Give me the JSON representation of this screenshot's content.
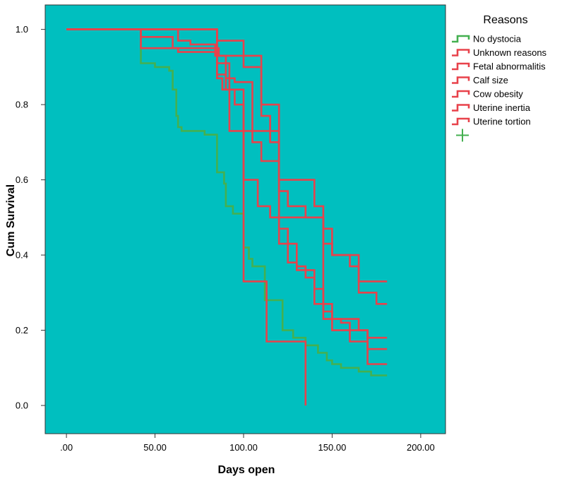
{
  "chart_data": {
    "type": "line",
    "subtype": "kaplan-meier step survival curves",
    "xlabel": "Days open",
    "ylabel": "Cum Survival",
    "xlim": [
      -12,
      214
    ],
    "ylim": [
      -0.075,
      1.065
    ],
    "x_ticks": [
      0,
      50,
      100,
      150,
      200
    ],
    "x_tick_labels": [
      ".00",
      "50.00",
      "100.00",
      "150.00",
      "200.00"
    ],
    "y_ticks": [
      0,
      0.2,
      0.4,
      0.6,
      0.8,
      1.0
    ],
    "y_tick_labels": [
      "0.0",
      "0.2",
      "0.4",
      "0.6",
      "0.8",
      "1.0"
    ],
    "plot_background": "#00bfbf",
    "legend": {
      "title": "Reasons",
      "position": "right",
      "censor_marker_color": "#44b050"
    },
    "series": [
      {
        "name": "No dystocia",
        "color": "#44b050",
        "points": [
          [
            0,
            1.0
          ],
          [
            42,
            1.0
          ],
          [
            42,
            0.91
          ],
          [
            50,
            0.91
          ],
          [
            50,
            0.9
          ],
          [
            58,
            0.9
          ],
          [
            58,
            0.89
          ],
          [
            60,
            0.89
          ],
          [
            60,
            0.84
          ],
          [
            62,
            0.84
          ],
          [
            62,
            0.77
          ],
          [
            63,
            0.77
          ],
          [
            63,
            0.74
          ],
          [
            65,
            0.74
          ],
          [
            65,
            0.73
          ],
          [
            78,
            0.73
          ],
          [
            78,
            0.72
          ],
          [
            85,
            0.72
          ],
          [
            85,
            0.62
          ],
          [
            89,
            0.62
          ],
          [
            89,
            0.59
          ],
          [
            90,
            0.59
          ],
          [
            90,
            0.53
          ],
          [
            94,
            0.53
          ],
          [
            94,
            0.51
          ],
          [
            100,
            0.51
          ],
          [
            100,
            0.42
          ],
          [
            103,
            0.42
          ],
          [
            103,
            0.39
          ],
          [
            105,
            0.39
          ],
          [
            105,
            0.37
          ],
          [
            112,
            0.37
          ],
          [
            112,
            0.28
          ],
          [
            122,
            0.28
          ],
          [
            122,
            0.2
          ],
          [
            128,
            0.2
          ],
          [
            128,
            0.18
          ],
          [
            135,
            0.18
          ],
          [
            135,
            0.16
          ],
          [
            142,
            0.16
          ],
          [
            142,
            0.14
          ],
          [
            147,
            0.14
          ],
          [
            147,
            0.12
          ],
          [
            150,
            0.12
          ],
          [
            150,
            0.11
          ],
          [
            155,
            0.11
          ],
          [
            155,
            0.1
          ],
          [
            165,
            0.1
          ],
          [
            165,
            0.09
          ],
          [
            172,
            0.09
          ],
          [
            172,
            0.08
          ],
          [
            181,
            0.08
          ]
        ]
      },
      {
        "name": "Unknown reasons",
        "color": "#e8424b",
        "points": [
          [
            0,
            1.0
          ],
          [
            85,
            1.0
          ],
          [
            85,
            0.87
          ],
          [
            88,
            0.87
          ],
          [
            88,
            0.84
          ],
          [
            100,
            0.84
          ],
          [
            100,
            0.33
          ],
          [
            113,
            0.33
          ],
          [
            113,
            0.17
          ],
          [
            135,
            0.17
          ],
          [
            135,
            0.0
          ]
        ]
      },
      {
        "name": "Fetal abnormalitis",
        "color": "#e8424b",
        "points": [
          [
            0,
            1.0
          ],
          [
            42,
            1.0
          ],
          [
            42,
            0.95
          ],
          [
            63,
            0.95
          ],
          [
            63,
            0.94
          ],
          [
            85,
            0.94
          ],
          [
            85,
            0.91
          ],
          [
            92,
            0.91
          ],
          [
            92,
            0.73
          ],
          [
            115,
            0.73
          ],
          [
            115,
            0.7
          ],
          [
            120,
            0.7
          ],
          [
            120,
            0.5
          ],
          [
            145,
            0.5
          ],
          [
            145,
            0.23
          ],
          [
            165,
            0.23
          ],
          [
            165,
            0.2
          ],
          [
            170,
            0.2
          ],
          [
            170,
            0.18
          ],
          [
            181,
            0.18
          ]
        ]
      },
      {
        "name": "Calf size",
        "color": "#e8424b",
        "points": [
          [
            0,
            1.0
          ],
          [
            85,
            1.0
          ],
          [
            85,
            0.88
          ],
          [
            90,
            0.88
          ],
          [
            90,
            0.84
          ],
          [
            95,
            0.84
          ],
          [
            95,
            0.8
          ],
          [
            100,
            0.8
          ],
          [
            100,
            0.6
          ],
          [
            108,
            0.6
          ],
          [
            108,
            0.53
          ],
          [
            115,
            0.53
          ],
          [
            115,
            0.5
          ],
          [
            120,
            0.5
          ],
          [
            120,
            0.43
          ],
          [
            130,
            0.43
          ],
          [
            130,
            0.37
          ],
          [
            135,
            0.37
          ],
          [
            135,
            0.34
          ],
          [
            140,
            0.34
          ],
          [
            140,
            0.27
          ],
          [
            145,
            0.27
          ],
          [
            145,
            0.25
          ],
          [
            150,
            0.25
          ],
          [
            150,
            0.2
          ],
          [
            160,
            0.2
          ],
          [
            160,
            0.17
          ],
          [
            170,
            0.17
          ],
          [
            170,
            0.15
          ],
          [
            181,
            0.15
          ]
        ]
      },
      {
        "name": "Cow obesity",
        "color": "#e8424b",
        "points": [
          [
            0,
            1.0
          ],
          [
            63,
            1.0
          ],
          [
            63,
            0.97
          ],
          [
            70,
            0.97
          ],
          [
            70,
            0.96
          ],
          [
            84,
            0.96
          ],
          [
            84,
            0.93
          ],
          [
            90,
            0.93
          ],
          [
            90,
            0.87
          ],
          [
            95,
            0.87
          ],
          [
            95,
            0.86
          ],
          [
            105,
            0.86
          ],
          [
            105,
            0.7
          ],
          [
            110,
            0.7
          ],
          [
            110,
            0.65
          ],
          [
            120,
            0.65
          ],
          [
            120,
            0.47
          ],
          [
            125,
            0.47
          ],
          [
            125,
            0.38
          ],
          [
            130,
            0.38
          ],
          [
            130,
            0.36
          ],
          [
            140,
            0.36
          ],
          [
            140,
            0.31
          ],
          [
            145,
            0.31
          ],
          [
            145,
            0.27
          ],
          [
            150,
            0.27
          ],
          [
            150,
            0.23
          ],
          [
            155,
            0.23
          ],
          [
            155,
            0.22
          ],
          [
            160,
            0.22
          ],
          [
            160,
            0.2
          ],
          [
            170,
            0.2
          ],
          [
            170,
            0.11
          ],
          [
            181,
            0.11
          ]
        ]
      },
      {
        "name": "Uterine inertia",
        "color": "#e8424b",
        "points": [
          [
            0,
            1.0
          ],
          [
            42,
            1.0
          ],
          [
            42,
            0.98
          ],
          [
            60,
            0.98
          ],
          [
            60,
            0.95
          ],
          [
            86,
            0.95
          ],
          [
            86,
            0.93
          ],
          [
            100,
            0.93
          ],
          [
            100,
            0.9
          ],
          [
            110,
            0.9
          ],
          [
            110,
            0.77
          ],
          [
            115,
            0.77
          ],
          [
            115,
            0.73
          ],
          [
            120,
            0.73
          ],
          [
            120,
            0.57
          ],
          [
            125,
            0.57
          ],
          [
            125,
            0.53
          ],
          [
            135,
            0.53
          ],
          [
            135,
            0.5
          ],
          [
            145,
            0.5
          ],
          [
            145,
            0.43
          ],
          [
            150,
            0.43
          ],
          [
            150,
            0.4
          ],
          [
            160,
            0.4
          ],
          [
            160,
            0.37
          ],
          [
            165,
            0.37
          ],
          [
            165,
            0.3
          ],
          [
            175,
            0.3
          ],
          [
            175,
            0.27
          ],
          [
            181,
            0.27
          ]
        ]
      },
      {
        "name": "Uterine tortion",
        "color": "#e8424b",
        "points": [
          [
            0,
            1.0
          ],
          [
            85,
            1.0
          ],
          [
            85,
            0.97
          ],
          [
            100,
            0.97
          ],
          [
            100,
            0.93
          ],
          [
            110,
            0.93
          ],
          [
            110,
            0.8
          ],
          [
            120,
            0.8
          ],
          [
            120,
            0.6
          ],
          [
            140,
            0.6
          ],
          [
            140,
            0.53
          ],
          [
            145,
            0.53
          ],
          [
            145,
            0.47
          ],
          [
            150,
            0.47
          ],
          [
            150,
            0.4
          ],
          [
            165,
            0.4
          ],
          [
            165,
            0.33
          ],
          [
            181,
            0.33
          ]
        ]
      }
    ]
  }
}
